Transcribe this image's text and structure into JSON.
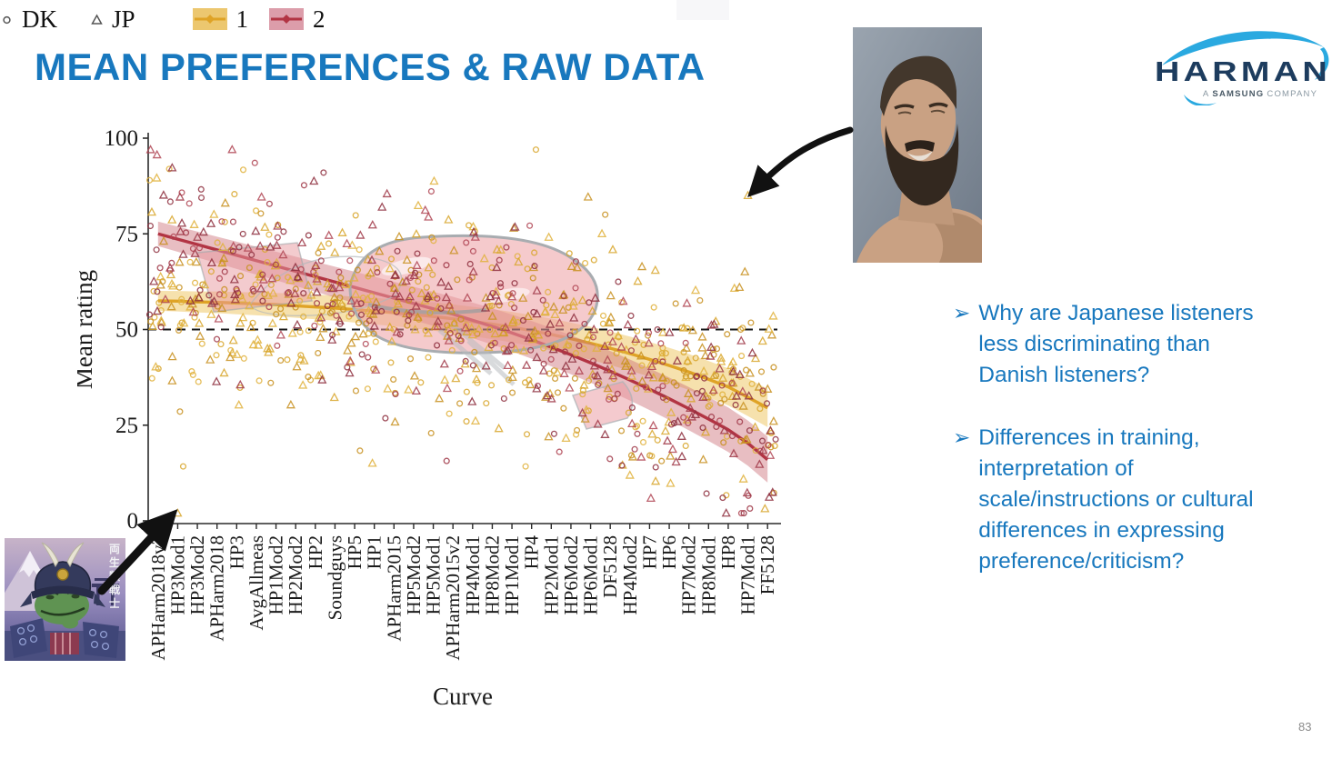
{
  "slide": {
    "title": "MEAN PREFERENCES & RAW DATA",
    "title_color": "#1878be",
    "page_number": "83"
  },
  "logo": {
    "name": "HARMAN",
    "subtitle_a": "A",
    "subtitle_brand": "SAMSUNG",
    "subtitle_rest": "COMPANY",
    "navy": "#1d3c5e",
    "swoosh_blue": "#2aa9e0"
  },
  "images": {
    "chad_photo": {
      "alt": "smiling bearded man portrait photo"
    },
    "pepe": {
      "alt": "samurai frog meme picture",
      "vertical_text": "両生類戦士"
    }
  },
  "annotations": {
    "arrow_top": {
      "points_to": "high outlier point near top right of chart"
    },
    "arrow_bottom": {
      "points_to": "low outlier point near bottom left of chart"
    }
  },
  "bullets": [
    {
      "marker": "➢",
      "text": "Why are Japanese listeners less discriminating than Danish listeners?"
    },
    {
      "marker": "➢",
      "text": "Differences in training, interpretation of scale/instructions or cultural differences in expressing preference/criticism?"
    }
  ],
  "chart_data": {
    "type": "scatter",
    "xlabel": "Curve",
    "ylabel": "Mean rating",
    "ylim": [
      0,
      100
    ],
    "yticks": [
      0,
      25,
      50,
      75,
      100
    ],
    "grid": false,
    "legend_position": "bottom",
    "reference_line": {
      "y": 50,
      "style": "dashed",
      "color": "#1a1a1a"
    },
    "categories": [
      "APHarm2018v2",
      "HP3Mod1",
      "HP3Mod2",
      "APHarm2018",
      "HP3",
      "AvgAllmeas",
      "HP1Mod2",
      "HP2Mod2",
      "HP2",
      "Soundguys",
      "HP5",
      "HP1",
      "APHarm2015",
      "HP5Mod2",
      "HP5Mod1",
      "APHarm2015v2",
      "HP4Mod1",
      "HP8Mod2",
      "HP1Mod1",
      "HP4",
      "HP2Mod1",
      "HP6Mod2",
      "HP6Mod1",
      "DF5128",
      "HP4Mod2",
      "HP7",
      "HP6",
      "HP7Mod2",
      "HP8Mod1",
      "HP8",
      "HP7Mod1",
      "FF5128"
    ],
    "series": [
      {
        "name": "1",
        "color": "#dfa326",
        "band_color": "rgba(238,201,106,0.55)",
        "band_width_start": 2.6,
        "band_width_end": 5.0,
        "values": [
          57.5,
          57.4,
          57.2,
          57.1,
          56.9,
          56.7,
          56.5,
          56.2,
          55.9,
          55.6,
          55.2,
          54.8,
          54.4,
          53.9,
          53.4,
          52.8,
          52.1,
          51.4,
          50.6,
          49.7,
          48.7,
          47.6,
          46.4,
          45.1,
          43.7,
          42.2,
          40.6,
          38.9,
          37.0,
          35.0,
          32.3,
          29.5
        ]
      },
      {
        "name": "2",
        "color": "#b23443",
        "band_color": "rgba(205,110,120,0.45)",
        "band_width_start": 3.2,
        "band_width_end": 6.0,
        "values": [
          75.0,
          73.6,
          72.2,
          70.8,
          69.4,
          68.0,
          66.6,
          65.2,
          63.8,
          62.4,
          61.0,
          59.6,
          58.2,
          56.8,
          55.4,
          54.0,
          52.4,
          50.8,
          49.1,
          47.3,
          45.4,
          43.4,
          41.3,
          39.1,
          36.8,
          34.4,
          31.9,
          29.3,
          26.6,
          23.8,
          20.3,
          16.0
        ]
      }
    ],
    "legend": [
      {
        "label": "DK",
        "marker": "circle"
      },
      {
        "label": "JP",
        "marker": "triangle"
      },
      {
        "label": "1",
        "swatch_fill": "#ecc76f",
        "swatch_line": "#dfa326"
      },
      {
        "label": "2",
        "swatch_fill": "#dc9daa",
        "swatch_line": "#b23443"
      }
    ],
    "scatter": {
      "seed": 7,
      "per_category": {
        "yellow_circles": 9,
        "yellow_triangles": 9,
        "red_circles": 6,
        "red_triangles": 6
      },
      "sd": {
        "1": 13.5,
        "2": 12.5
      },
      "x_jitter": 9.5,
      "yellow_palette": [
        "#d8a62c",
        "#c89020",
        "#e0b23c"
      ],
      "red_palette": [
        "#a03848",
        "#8e2f3e",
        "#b04553"
      ],
      "outliers": [
        {
          "category_index": 30,
          "series": "1",
          "marker": "triangle",
          "value": 85
        },
        {
          "category_index": 1,
          "series": "1",
          "marker": "triangle",
          "value": 2
        }
      ]
    }
  }
}
